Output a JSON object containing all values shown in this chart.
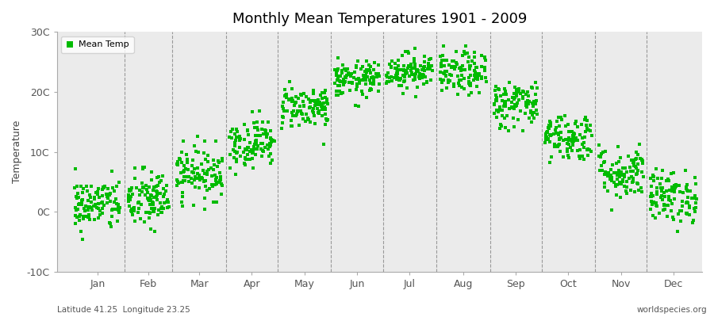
{
  "title": "Monthly Mean Temperatures 1901 - 2009",
  "ylabel": "Temperature",
  "xlabel_left": "Latitude 41.25  Longitude 23.25",
  "xlabel_right": "worldspecies.org",
  "legend_label": "Mean Temp",
  "marker_color": "#00BB00",
  "marker_size": 6,
  "ylim": [
    -10,
    30
  ],
  "yticks": [
    -10,
    0,
    10,
    20,
    30
  ],
  "ytick_labels": [
    "-10C",
    "0C",
    "10C",
    "20C",
    "30C"
  ],
  "months": [
    "Jan",
    "Feb",
    "Mar",
    "Apr",
    "May",
    "Jun",
    "Jul",
    "Aug",
    "Sep",
    "Oct",
    "Nov",
    "Dec"
  ],
  "plot_bg_color": "#EBEBEB",
  "figure_color": "#FFFFFF",
  "monthly_means": [
    1.2,
    2.0,
    6.5,
    11.5,
    17.5,
    22.0,
    23.5,
    23.0,
    18.0,
    12.5,
    6.5,
    2.5
  ],
  "monthly_stds": [
    2.2,
    2.5,
    2.2,
    2.0,
    1.8,
    1.5,
    1.5,
    1.8,
    2.0,
    2.0,
    2.2,
    2.2
  ],
  "n_years": 109,
  "seed": 42
}
